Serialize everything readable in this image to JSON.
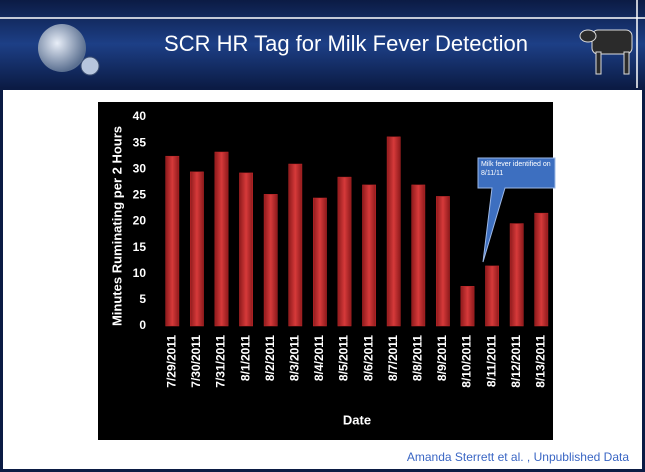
{
  "slide": {
    "title": "SCR  HR Tag for Milk Fever Detection",
    "credit": "Amanda Sterrett et al. , Unpublished Data"
  },
  "chart_data": {
    "type": "bar",
    "y_label": "Minutes Ruminating per 2 Hours",
    "x_label": "Date",
    "annotation": "Milk fever identified on 8/11/11",
    "categories": [
      "7/29/2011",
      "7/30/2011",
      "7/31/2011",
      "8/1/2011",
      "8/2/2011",
      "8/3/2011",
      "8/4/2011",
      "8/5/2011",
      "8/6/2011",
      "8/7/2011",
      "8/8/2011",
      "8/9/2011",
      "8/10/2011",
      "8/11/2011",
      "8/12/2011",
      "8/13/2011"
    ],
    "values": [
      32.5,
      29.5,
      33.3,
      29.3,
      25.2,
      31,
      24.5,
      28.5,
      27,
      36.2,
      27,
      24.8,
      7.6,
      11.5,
      19.6,
      21.6
    ],
    "color": "#c0282a",
    "ylim": [
      0,
      40
    ],
    "yticks": [
      0,
      5,
      10,
      15,
      20,
      25,
      30,
      35,
      40
    ],
    "grid": false
  }
}
